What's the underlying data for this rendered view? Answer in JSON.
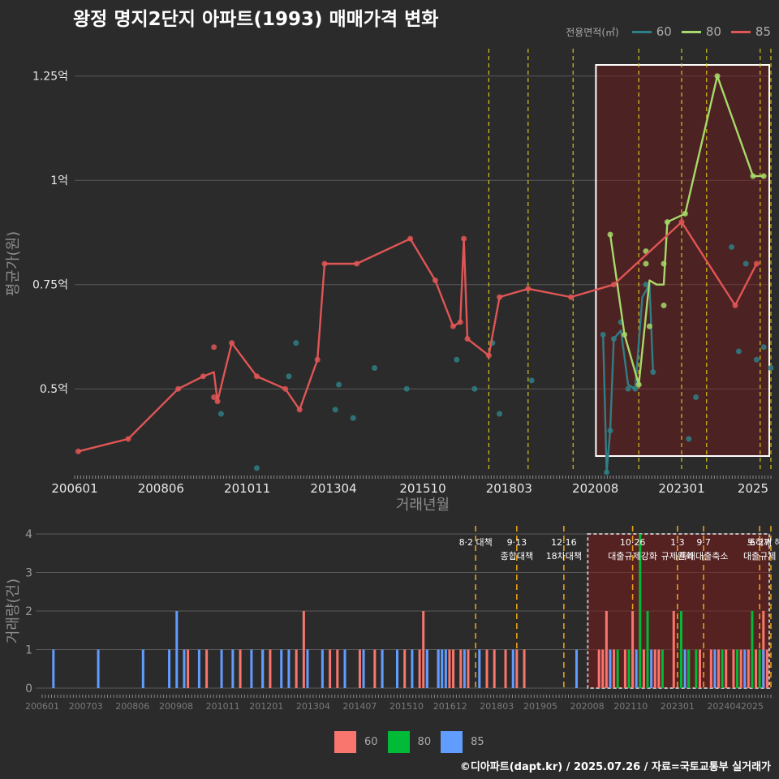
{
  "title": "왕정 명지2단지 아파트(1993) 매매가격 변화",
  "credit": "©디아파트(dapt.kr) / 2025.07.26 / 자료=국토교통부 실거래가",
  "legend_top": {
    "title": "전용면적(㎡)",
    "items": [
      {
        "label": "60",
        "color": "#2f7f86"
      },
      {
        "label": "80",
        "color": "#a6d96a"
      },
      {
        "label": "85",
        "color": "#e05555"
      }
    ]
  },
  "legend_bottom": {
    "items": [
      {
        "label": "60",
        "color": "#f8766d"
      },
      {
        "label": "80",
        "color": "#00ba38"
      },
      {
        "label": "85",
        "color": "#619cff"
      }
    ]
  },
  "chart_data": [
    {
      "type": "line",
      "ylabel": "평균가(원)",
      "xlabel": "거래년월",
      "x_tick_labels": [
        "200601",
        "200806",
        "201011",
        "201304",
        "201510",
        "201803",
        "202008",
        "202301",
        "2025"
      ],
      "y_tick_labels": [
        "0.5억",
        "0.75억",
        "1억",
        "1.25억"
      ],
      "y_ticks": [
        0.5,
        0.75,
        1.0,
        1.25
      ],
      "xlim": [
        2006.0,
        2025.5
      ],
      "ylim": [
        0.3,
        1.3
      ],
      "policy_lines_x": [
        2017.6,
        2018.7,
        2019.96,
        2021.8,
        2023.0,
        2023.7,
        2025.2,
        2025.5
      ],
      "highlight_range_x": [
        2020.6,
        2025.5
      ],
      "grid": true,
      "series": [
        {
          "name": "60",
          "color": "#2f7f86",
          "line": [
            [
              2020.8,
              0.63
            ],
            [
              2020.9,
              0.3
            ],
            [
              2021.0,
              0.4
            ],
            [
              2021.1,
              0.62
            ],
            [
              2021.3,
              0.64
            ],
            [
              2021.5,
              0.51
            ],
            [
              2021.7,
              0.5
            ],
            [
              2021.9,
              0.72
            ],
            [
              2022.1,
              0.75
            ],
            [
              2022.2,
              0.54
            ]
          ],
          "points": [
            [
              2010.1,
              0.44
            ],
            [
              2011.1,
              0.31
            ],
            [
              2012.0,
              0.53
            ],
            [
              2012.2,
              0.61
            ],
            [
              2013.3,
              0.45
            ],
            [
              2013.4,
              0.51
            ],
            [
              2013.8,
              0.43
            ],
            [
              2014.4,
              0.55
            ],
            [
              2015.3,
              0.5
            ],
            [
              2016.7,
              0.57
            ],
            [
              2017.2,
              0.5
            ],
            [
              2017.7,
              0.61
            ],
            [
              2017.9,
              0.44
            ],
            [
              2018.8,
              0.52
            ],
            [
              2020.8,
              0.63
            ],
            [
              2020.9,
              0.3
            ],
            [
              2021.0,
              0.4
            ],
            [
              2021.1,
              0.62
            ],
            [
              2021.3,
              0.66
            ],
            [
              2021.5,
              0.5
            ],
            [
              2021.7,
              0.5
            ],
            [
              2022.0,
              0.75
            ],
            [
              2022.2,
              0.54
            ],
            [
              2023.2,
              0.38
            ],
            [
              2023.4,
              0.48
            ],
            [
              2024.4,
              0.84
            ],
            [
              2024.6,
              0.59
            ],
            [
              2024.8,
              0.8
            ],
            [
              2025.1,
              0.57
            ],
            [
              2025.3,
              0.6
            ],
            [
              2025.5,
              0.55
            ]
          ]
        },
        {
          "name": "80",
          "color": "#a6d96a",
          "line": [
            [
              2021.0,
              0.87
            ],
            [
              2021.4,
              0.63
            ],
            [
              2021.8,
              0.51
            ],
            [
              2022.1,
              0.76
            ],
            [
              2022.3,
              0.75
            ],
            [
              2022.5,
              0.75
            ],
            [
              2022.6,
              0.9
            ],
            [
              2023.1,
              0.92
            ],
            [
              2024.0,
              1.25
            ],
            [
              2025.0,
              1.01
            ],
            [
              2025.3,
              1.01
            ]
          ],
          "points": [
            [
              2021.0,
              0.87
            ],
            [
              2021.4,
              0.63
            ],
            [
              2021.8,
              0.51
            ],
            [
              2022.0,
              0.8
            ],
            [
              2022.0,
              0.83
            ],
            [
              2022.1,
              0.65
            ],
            [
              2022.5,
              0.7
            ],
            [
              2022.5,
              0.8
            ],
            [
              2022.6,
              0.9
            ],
            [
              2023.1,
              0.92
            ],
            [
              2024.0,
              1.25
            ],
            [
              2025.0,
              1.01
            ],
            [
              2025.3,
              1.01
            ]
          ]
        },
        {
          "name": "85",
          "color": "#e05555",
          "line": [
            [
              2006.1,
              0.35
            ],
            [
              2007.5,
              0.38
            ],
            [
              2008.9,
              0.5
            ],
            [
              2009.6,
              0.53
            ],
            [
              2009.9,
              0.54
            ],
            [
              2010.0,
              0.47
            ],
            [
              2010.4,
              0.61
            ],
            [
              2011.1,
              0.53
            ],
            [
              2011.9,
              0.5
            ],
            [
              2012.3,
              0.45
            ],
            [
              2012.8,
              0.57
            ],
            [
              2013.0,
              0.8
            ],
            [
              2013.9,
              0.8
            ],
            [
              2015.4,
              0.86
            ],
            [
              2016.1,
              0.76
            ],
            [
              2016.6,
              0.65
            ],
            [
              2016.8,
              0.66
            ],
            [
              2016.9,
              0.86
            ],
            [
              2017.0,
              0.62
            ],
            [
              2017.6,
              0.58
            ],
            [
              2017.9,
              0.72
            ],
            [
              2018.7,
              0.74
            ],
            [
              2019.9,
              0.72
            ],
            [
              2021.1,
              0.75
            ],
            [
              2023.0,
              0.9
            ],
            [
              2024.5,
              0.7
            ],
            [
              2025.1,
              0.8
            ]
          ],
          "points": [
            [
              2006.1,
              0.35
            ],
            [
              2007.5,
              0.38
            ],
            [
              2008.9,
              0.5
            ],
            [
              2009.6,
              0.53
            ],
            [
              2009.9,
              0.6
            ],
            [
              2009.9,
              0.48
            ],
            [
              2010.0,
              0.47
            ],
            [
              2010.4,
              0.61
            ],
            [
              2011.1,
              0.53
            ],
            [
              2011.9,
              0.5
            ],
            [
              2012.3,
              0.45
            ],
            [
              2012.8,
              0.57
            ],
            [
              2013.0,
              0.8
            ],
            [
              2013.9,
              0.8
            ],
            [
              2015.4,
              0.86
            ],
            [
              2016.1,
              0.76
            ],
            [
              2016.6,
              0.65
            ],
            [
              2016.8,
              0.66
            ],
            [
              2016.9,
              0.86
            ],
            [
              2017.0,
              0.62
            ],
            [
              2017.6,
              0.58
            ],
            [
              2017.9,
              0.72
            ],
            [
              2018.7,
              0.74
            ],
            [
              2019.9,
              0.72
            ],
            [
              2021.1,
              0.75
            ],
            [
              2023.0,
              0.9
            ],
            [
              2024.5,
              0.7
            ],
            [
              2025.1,
              0.8
            ]
          ]
        }
      ]
    },
    {
      "type": "bar",
      "ylabel": "거래량(건)",
      "x_tick_labels": [
        "200601",
        "200703",
        "200806",
        "200908",
        "201011",
        "201201",
        "201304",
        "201407",
        "201510",
        "201612",
        "201803",
        "201905",
        "202008",
        "202110",
        "202301",
        "202404",
        "2025"
      ],
      "y_tick_labels": [
        "0",
        "1",
        "2",
        "3",
        "4"
      ],
      "y_ticks": [
        0,
        1,
        2,
        3,
        4
      ],
      "xlim": [
        2006.0,
        2025.5
      ],
      "ylim": [
        0,
        4
      ],
      "highlight_range_x": [
        2020.6,
        2025.5
      ],
      "policy_lines_x": [
        2017.6,
        2018.7,
        2019.96,
        2021.8,
        2023.0,
        2023.7,
        2025.2,
        2025.5
      ],
      "annotations": [
        {
          "x": 2017.6,
          "lines": [
            "8·2 대책"
          ]
        },
        {
          "x": 2018.7,
          "lines": [
            "9·13",
            "종합대책"
          ]
        },
        {
          "x": 2019.96,
          "lines": [
            "12·16",
            "18차대책"
          ]
        },
        {
          "x": 2021.8,
          "lines": [
            "10·26",
            "대출규제강화"
          ]
        },
        {
          "x": 2023.0,
          "lines": [
            "1·3",
            "규제완화"
          ]
        },
        {
          "x": 2023.7,
          "lines": [
            "9·7",
            "특례대출축소"
          ]
        },
        {
          "x": 2025.2,
          "lines": [
            "6·27",
            "대출규제"
          ]
        },
        {
          "x": 2025.45,
          "lines": [
            "토허제 해제"
          ]
        }
      ],
      "series": [
        {
          "name": "60",
          "color": "#f8766d",
          "x": [
            2009.9,
            2010.4,
            2011.3,
            2011.9,
            2012.1,
            2012.8,
            2013.0,
            2013.7,
            2013.9,
            2014.1,
            2014.5,
            2014.9,
            2015.1,
            2015.7,
            2016.1,
            2016.2,
            2016.3,
            2016.6,
            2016.9,
            2017.0,
            2017.2,
            2017.4,
            2017.9,
            2018.1,
            2018.4,
            2018.7,
            2018.9,
            2020.9,
            2021.0,
            2021.1,
            2021.2,
            2021.3,
            2021.6,
            2021.8,
            2022.1,
            2022.4,
            2022.5,
            2022.9,
            2023.1,
            2023.3,
            2023.6,
            2023.9,
            2024.1,
            2024.3,
            2024.5,
            2024.7,
            2024.9,
            2025.1,
            2025.3,
            2025.4
          ],
          "values": [
            1,
            1,
            1,
            1,
            1,
            1,
            2,
            1,
            1,
            1,
            1,
            1,
            1,
            1,
            1,
            2,
            1,
            1,
            1,
            1,
            1,
            1,
            1,
            1,
            1,
            1,
            1,
            1,
            1,
            2,
            1,
            1,
            1,
            2,
            1,
            1,
            1,
            2,
            1,
            1,
            1,
            1,
            1,
            1,
            1,
            1,
            1,
            1,
            2,
            1
          ]
        },
        {
          "name": "80",
          "color": "#00ba38",
          "x": [
            2021.4,
            2021.7,
            2022.0,
            2022.2,
            2022.6,
            2023.1,
            2023.3,
            2023.5,
            2024.2,
            2024.6,
            2025.0,
            2025.2
          ],
          "values": [
            1,
            1,
            4,
            2,
            1,
            2,
            1,
            1,
            1,
            1,
            2,
            1
          ]
        },
        {
          "name": "85",
          "color": "#619cff",
          "x": [
            2006.3,
            2007.5,
            2008.7,
            2009.4,
            2009.6,
            2009.8,
            2010.2,
            2010.8,
            2011.1,
            2011.6,
            2011.9,
            2012.4,
            2012.6,
            2013.1,
            2013.5,
            2014.1,
            2014.6,
            2015.1,
            2015.5,
            2015.9,
            2016.3,
            2016.6,
            2016.7,
            2016.8,
            2017.3,
            2017.7,
            2018.6,
            2020.3,
            2021.2,
            2021.9,
            2022.3,
            2023.2,
            2024.0,
            2024.8,
            2025.3
          ],
          "values": [
            1,
            1,
            1,
            1,
            2,
            1,
            1,
            1,
            1,
            1,
            1,
            1,
            1,
            1,
            1,
            1,
            1,
            1,
            1,
            1,
            1,
            1,
            1,
            1,
            1,
            1,
            1,
            1,
            1,
            1,
            1,
            1,
            1,
            1,
            1
          ]
        }
      ]
    }
  ]
}
